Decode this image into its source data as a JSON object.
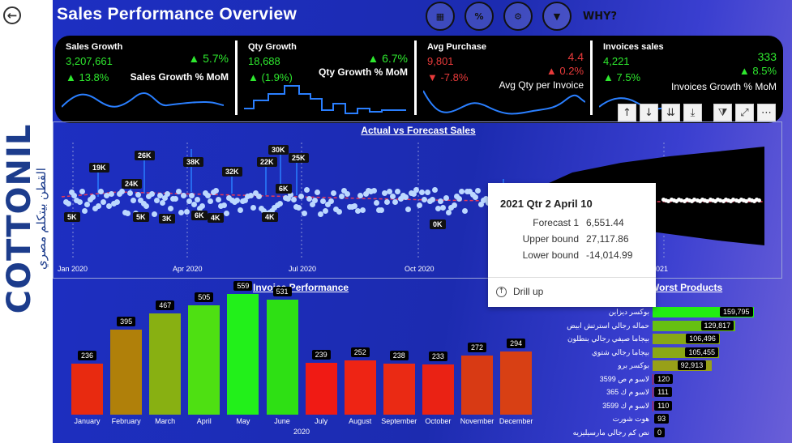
{
  "app": {
    "title": "Sales Performance Overview"
  },
  "brand": {
    "name": "COTTONIL",
    "tagline": "القطن بيتكلم مصري",
    "registered": "®"
  },
  "header_icons": [
    {
      "name": "report-icon",
      "glyph": "▦"
    },
    {
      "name": "discount-icon",
      "glyph": "%"
    },
    {
      "name": "growth-icon",
      "glyph": "⚙"
    },
    {
      "name": "funnel-icon",
      "glyph": "▼"
    },
    {
      "name": "why-icon",
      "glyph": "WHY?"
    }
  ],
  "kpis": [
    {
      "name": "Sales Growth",
      "value": "3,207,661",
      "sub": "▲ 13.8%",
      "mom": "▲ 5.7%",
      "caption": "Sales Growth % MoM"
    },
    {
      "name": "Qty Growth",
      "value": "18,688",
      "sub": "▲ (1.9%)",
      "mom": "▲ 6.7%",
      "caption": "Qty Growth % MoM"
    },
    {
      "name": "Avg Purchase",
      "value": "9,801",
      "sub": "▼ -7.8%",
      "mom": "4.4",
      "mom2": "▲ 0.2%",
      "caption": "Avg Qty per Invoice"
    },
    {
      "name": "Invoices sales",
      "value": "4,221",
      "sub": "▲ 7.5%",
      "mom": "333",
      "mom2": "▲ 8.5%",
      "caption": "Invoices Growth % MoM"
    }
  ],
  "toolbar": [
    {
      "name": "drill-up-icon",
      "glyph": "↑"
    },
    {
      "name": "drill-down-icon",
      "glyph": "↓"
    },
    {
      "name": "expand-next-level-icon",
      "glyph": "⇊"
    },
    {
      "name": "expand-all-icon",
      "glyph": "⤓"
    },
    {
      "name": "filter-icon",
      "glyph": "⧩"
    },
    {
      "name": "focus-mode-icon",
      "glyph": "⤢"
    },
    {
      "name": "more-options-icon",
      "glyph": "⋯"
    }
  ],
  "forecast": {
    "title": "Actual vs Forecast Sales",
    "x_ticks": [
      "Jan 2020",
      "Apr 2020",
      "Jul 2020",
      "Oct 2020",
      "2021"
    ],
    "peak_labels": [
      "19K",
      "24K",
      "26K",
      "38K",
      "32K",
      "22K",
      "30K",
      "25K",
      "6K",
      "5K",
      "5K",
      "3K",
      "6K",
      "4K",
      "4K",
      "0K"
    ],
    "tooltip": {
      "title": "2021 Qtr 2 April 10",
      "rows": [
        {
          "key": "Forecast 1",
          "value": "6,551.44"
        },
        {
          "key": "Upper bound",
          "value": "27,117.86"
        },
        {
          "key": "Lower bound",
          "value": "-14,014.99"
        }
      ],
      "drill": "Drill up"
    }
  },
  "invoice": {
    "title": "Invoice Performance",
    "year": "2020",
    "chart_data": {
      "type": "bar",
      "categories": [
        "January",
        "February",
        "March",
        "April",
        "May",
        "June",
        "July",
        "August",
        "September",
        "October",
        "November",
        "December"
      ],
      "values": [
        236,
        395,
        467,
        505,
        559,
        531,
        239,
        252,
        238,
        233,
        272,
        294
      ],
      "colors": [
        "#e82a10",
        "#b0800a",
        "#88b012",
        "#4ee012",
        "#22f01a",
        "#2ee014",
        "#f01a14",
        "#ee2414",
        "#ea2a14",
        "#ea2214",
        "#d83a14",
        "#d84014"
      ],
      "xlabel": "2020",
      "ylim": [
        0,
        600
      ]
    }
  },
  "worst": {
    "title": "Worst Products",
    "chart_data": {
      "type": "bar",
      "categories": [
        "بوكسر ديزاين",
        "حماله رجالي استرتش ابيض",
        "بيجاما صيفي رجالي بنطلون",
        "بيجاما رجالي شتوي",
        "بوكسر برو",
        "لاسو م ص 3599",
        "لاسو م ك 365",
        "لاسو م ك 3599",
        "هوت شورت",
        "نص كم رجالي مارسيليزيه"
      ],
      "values": [
        159795,
        129817,
        106496,
        105455,
        92913,
        120,
        111,
        110,
        93,
        0
      ],
      "labels": [
        "159,795",
        "129,817",
        "106,496",
        "105,455",
        "92,913",
        "120",
        "111",
        "110",
        "93",
        "0"
      ],
      "colors": [
        "#22ee12",
        "#66c012",
        "#88a815",
        "#8aa815",
        "#98a018",
        "#e01a14",
        "#e01a14",
        "#e01a14",
        "#e01a14",
        "#e01a14"
      ]
    }
  }
}
